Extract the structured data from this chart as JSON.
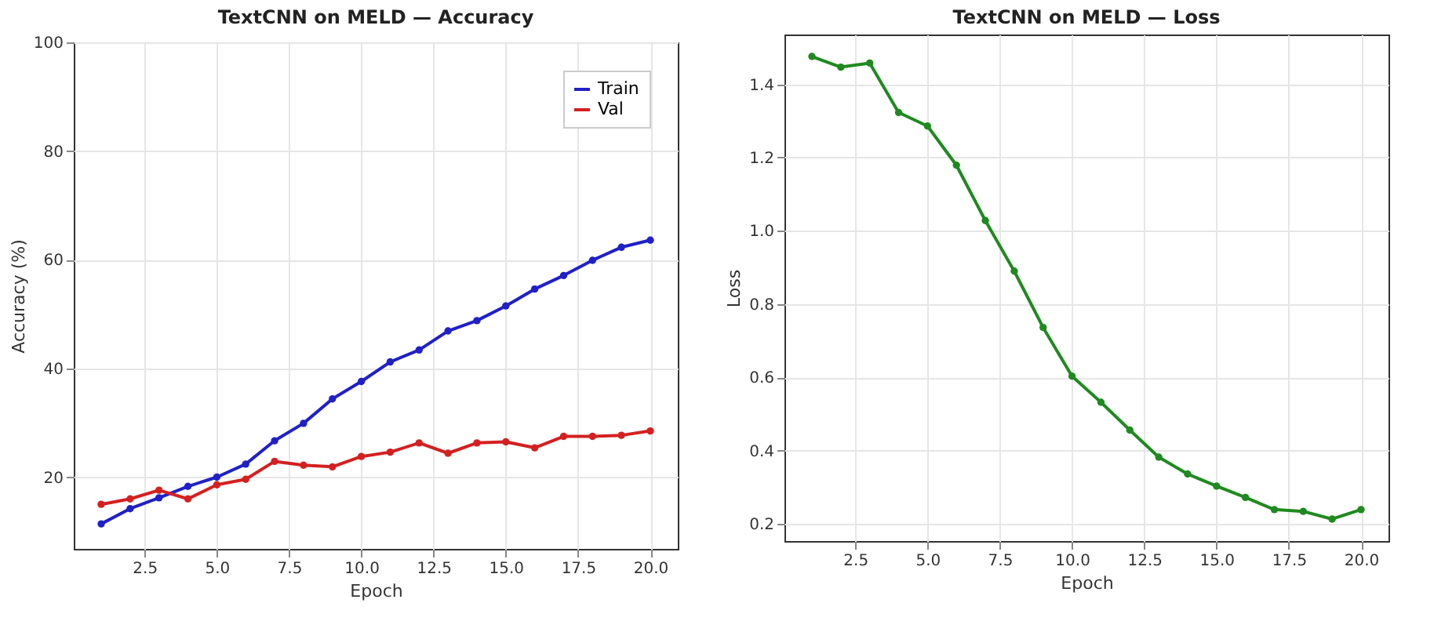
{
  "chart_data": [
    {
      "type": "line",
      "title": "TextCNN on MELD — Accuracy",
      "xlabel": "Epoch",
      "ylabel": "Accuracy (%)",
      "x": [
        1,
        2,
        3,
        4,
        5,
        6,
        7,
        8,
        9,
        10,
        11,
        12,
        13,
        14,
        15,
        16,
        17,
        18,
        19,
        20
      ],
      "series": [
        {
          "name": "Train",
          "color": "#2020c8",
          "values": [
            11.4,
            14.2,
            16.2,
            18.3,
            20.0,
            22.4,
            26.7,
            29.9,
            34.4,
            37.6,
            41.2,
            43.4,
            46.9,
            48.8,
            51.5,
            54.6,
            57.1,
            59.9,
            62.3,
            63.6
          ]
        },
        {
          "name": "Val",
          "color": "#d42020",
          "values": [
            15.0,
            16.0,
            17.6,
            16.0,
            18.6,
            19.6,
            22.9,
            22.2,
            21.9,
            23.8,
            24.6,
            26.3,
            24.4,
            26.3,
            26.5,
            25.4,
            27.5,
            27.5,
            27.7,
            28.5
          ]
        }
      ],
      "xlim": [
        0.05,
        20.95
      ],
      "xticks": [
        2.5,
        {
          "value": 5,
          "label": "5.0"
        },
        7.5,
        {
          "value": 10,
          "label": "10.0"
        },
        12.5,
        {
          "value": 15,
          "label": "15.0"
        },
        17.5,
        {
          "value": 20,
          "label": "20.0"
        }
      ],
      "ylim": [
        6.8,
        100
      ],
      "yticks": [
        20,
        40,
        60,
        80,
        100
      ],
      "grid": true,
      "legend": "top right",
      "marker": "circle",
      "line_style": "solid"
    },
    {
      "type": "line",
      "title": "TextCNN on MELD — Loss",
      "xlabel": "Epoch",
      "ylabel": "Loss",
      "x": [
        1,
        2,
        3,
        4,
        5,
        6,
        7,
        8,
        9,
        10,
        11,
        12,
        13,
        14,
        15,
        16,
        17,
        18,
        19,
        20
      ],
      "series": [
        {
          "color": "#1f8a1f",
          "values": [
            1.476,
            1.447,
            1.458,
            1.323,
            1.286,
            1.179,
            1.028,
            0.89,
            0.736,
            0.603,
            0.532,
            0.456,
            0.382,
            0.336,
            0.303,
            0.272,
            0.239,
            0.234,
            0.213,
            0.239
          ]
        }
      ],
      "xlim": [
        0.05,
        20.95
      ],
      "xticks": [
        2.5,
        {
          "value": 5,
          "label": "5.0"
        },
        7.5,
        {
          "value": 10,
          "label": "10.0"
        },
        12.5,
        {
          "value": 15,
          "label": "15.0"
        },
        17.5,
        {
          "value": 20,
          "label": "20.0"
        }
      ],
      "ylim": [
        0.153,
        1.536
      ],
      "yticks": [
        0.2,
        0.4,
        0.6,
        0.8,
        {
          "value": 1,
          "label": "1.0"
        },
        1.2,
        1.4
      ],
      "grid": true,
      "legend": false,
      "marker": "circle",
      "line_style": "solid"
    }
  ]
}
